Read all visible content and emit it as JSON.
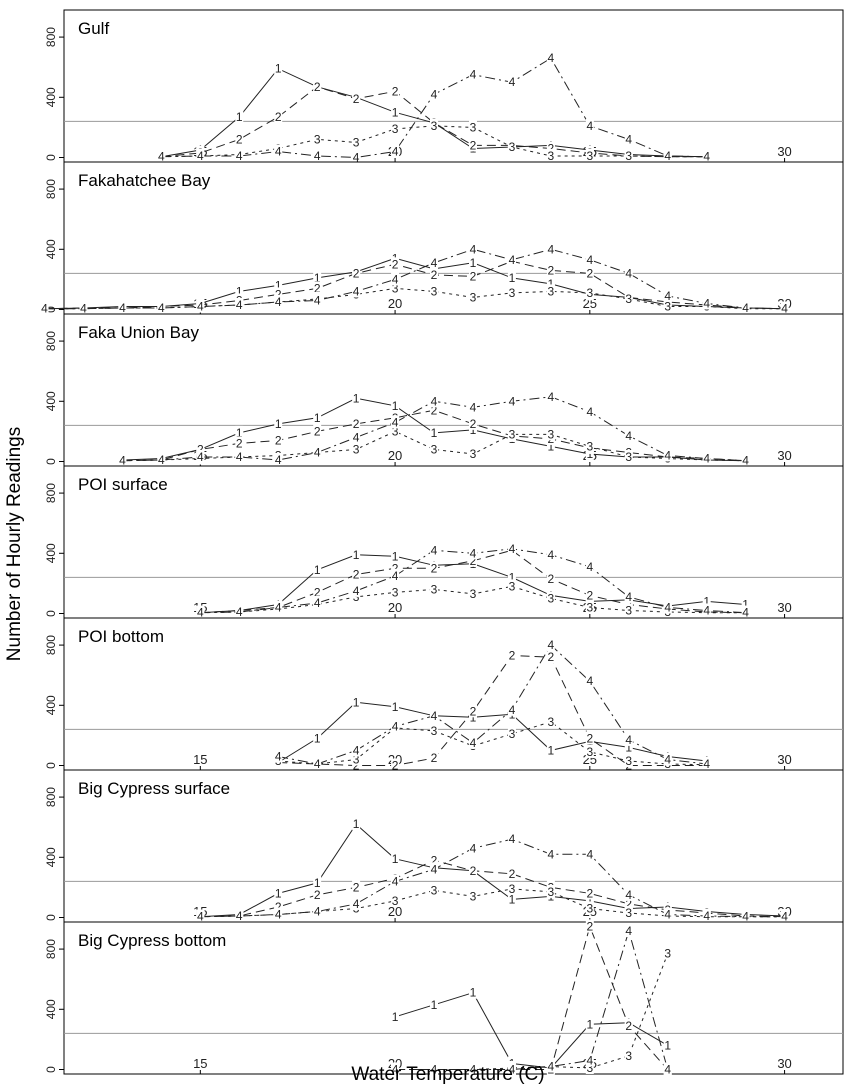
{
  "chart_data": {
    "type": "line",
    "xlabel": "Water Temperature (C)",
    "ylabel": "Number of Hourly Readings",
    "xlim": [
      11.5,
      31.5
    ],
    "ylim": [
      -30,
      980
    ],
    "x_ticks": [
      15,
      20,
      25,
      30
    ],
    "y_ticks": [
      0,
      400,
      800
    ],
    "reference_line": 240,
    "series_labels": [
      "1",
      "2",
      "3",
      "4"
    ],
    "panels": [
      {
        "title": "Gulf",
        "series": [
          {
            "label": "1",
            "x": [
              14,
              15,
              16,
              17,
              18,
              19,
              20,
              21,
              22,
              23,
              24,
              25,
              26,
              27,
              28
            ],
            "y": [
              5,
              50,
              270,
              590,
              470,
              400,
              300,
              230,
              60,
              70,
              80,
              50,
              20,
              10,
              5
            ]
          },
          {
            "label": "2",
            "x": [
              14,
              15,
              16,
              17,
              18,
              19,
              20,
              21,
              22,
              23,
              24,
              25,
              26,
              27,
              28
            ],
            "y": [
              5,
              30,
              120,
              270,
              470,
              390,
              440,
              230,
              80,
              80,
              60,
              30,
              10,
              5,
              5
            ]
          },
          {
            "label": "3",
            "x": [
              14,
              15,
              16,
              17,
              18,
              19,
              20,
              21,
              22,
              23,
              24,
              25,
              26,
              27,
              28
            ],
            "y": [
              5,
              10,
              20,
              60,
              120,
              100,
              190,
              210,
              200,
              70,
              10,
              10,
              10,
              5,
              5
            ]
          },
          {
            "label": "4",
            "x": [
              14,
              15,
              16,
              17,
              18,
              19,
              20,
              21,
              22,
              23,
              24,
              25,
              26,
              27,
              28
            ],
            "y": [
              5,
              10,
              10,
              40,
              10,
              0,
              40,
              420,
              550,
              500,
              660,
              210,
              120,
              10,
              5
            ]
          }
        ]
      },
      {
        "title": "Fakahatchee Bay",
        "series": [
          {
            "label": "1",
            "x": [
              11,
              12,
              13,
              14,
              15,
              16,
              17,
              18,
              19,
              20,
              21,
              22,
              23,
              24,
              25,
              26,
              27,
              28,
              29,
              30
            ],
            "y": [
              5,
              10,
              20,
              20,
              40,
              120,
              160,
              210,
              250,
              340,
              270,
              310,
              210,
              170,
              100,
              80,
              30,
              20,
              10,
              5
            ]
          },
          {
            "label": "2",
            "x": [
              11,
              12,
              13,
              14,
              15,
              16,
              17,
              18,
              19,
              20,
              21,
              22,
              23,
              24,
              25,
              26,
              27,
              28,
              29,
              30
            ],
            "y": [
              5,
              10,
              10,
              20,
              30,
              60,
              100,
              140,
              240,
              300,
              230,
              220,
              320,
              260,
              240,
              80,
              50,
              30,
              10,
              5
            ]
          },
          {
            "label": "3",
            "x": [
              11,
              12,
              13,
              14,
              15,
              16,
              17,
              18,
              19,
              20,
              21,
              22,
              23,
              24,
              25,
              26,
              27,
              28,
              29,
              30
            ],
            "y": [
              5,
              5,
              10,
              10,
              20,
              30,
              50,
              70,
              100,
              140,
              120,
              80,
              110,
              120,
              110,
              70,
              20,
              20,
              5,
              5
            ]
          },
          {
            "label": "4",
            "x": [
              11,
              12,
              13,
              14,
              15,
              16,
              17,
              18,
              19,
              20,
              21,
              22,
              23,
              24,
              25,
              26,
              27,
              28,
              29,
              30
            ],
            "y": [
              5,
              5,
              10,
              10,
              20,
              30,
              50,
              60,
              120,
              200,
              310,
              400,
              330,
              400,
              330,
              240,
              90,
              40,
              10,
              5
            ]
          }
        ]
      },
      {
        "title": "Faka Union Bay",
        "series": [
          {
            "label": "1",
            "x": [
              13,
              14,
              15,
              16,
              17,
              18,
              19,
              20,
              21,
              22,
              23,
              24,
              25,
              26,
              27,
              28,
              29
            ],
            "y": [
              10,
              20,
              80,
              190,
              250,
              290,
              420,
              370,
              190,
              210,
              150,
              100,
              50,
              30,
              30,
              10,
              5
            ]
          },
          {
            "label": "2",
            "x": [
              13,
              14,
              15,
              16,
              17,
              18,
              19,
              20,
              21,
              22,
              23,
              24,
              25,
              26,
              27,
              28,
              29
            ],
            "y": [
              5,
              10,
              80,
              120,
              140,
              200,
              250,
              290,
              340,
              250,
              170,
              150,
              90,
              60,
              30,
              20,
              5
            ]
          },
          {
            "label": "3",
            "x": [
              13,
              14,
              15,
              16,
              17,
              18,
              19,
              20,
              21,
              22,
              23,
              24,
              25,
              26,
              27,
              28,
              29
            ],
            "y": [
              5,
              10,
              20,
              30,
              40,
              60,
              80,
              200,
              80,
              50,
              180,
              180,
              100,
              30,
              20,
              10,
              5
            ]
          },
          {
            "label": "4",
            "x": [
              13,
              14,
              15,
              16,
              17,
              18,
              19,
              20,
              21,
              22,
              23,
              24,
              25,
              26,
              27,
              28,
              29
            ],
            "y": [
              5,
              10,
              30,
              30,
              10,
              60,
              160,
              260,
              400,
              360,
              400,
              430,
              330,
              170,
              40,
              20,
              5
            ]
          }
        ]
      },
      {
        "title": "POI surface",
        "series": [
          {
            "label": "1",
            "x": [
              15,
              16,
              17,
              18,
              19,
              20,
              21,
              22,
              23,
              24,
              25,
              26,
              27,
              28,
              29
            ],
            "y": [
              5,
              20,
              60,
              290,
              390,
              380,
              320,
              330,
              240,
              120,
              80,
              90,
              50,
              80,
              60
            ]
          },
          {
            "label": "2",
            "x": [
              15,
              16,
              17,
              18,
              19,
              20,
              21,
              22,
              23,
              24,
              25,
              26,
              27,
              28,
              29
            ],
            "y": [
              5,
              20,
              40,
              140,
              260,
              300,
              300,
              350,
              420,
              230,
              120,
              60,
              30,
              10,
              5
            ]
          },
          {
            "label": "3",
            "x": [
              15,
              16,
              17,
              18,
              19,
              20,
              21,
              22,
              23,
              24,
              25,
              26,
              27,
              28,
              29
            ],
            "y": [
              5,
              10,
              30,
              60,
              110,
              140,
              160,
              130,
              180,
              100,
              40,
              20,
              10,
              5,
              5
            ]
          },
          {
            "label": "4",
            "x": [
              15,
              16,
              17,
              18,
              19,
              20,
              21,
              22,
              23,
              24,
              25,
              26,
              27,
              28,
              29
            ],
            "y": [
              5,
              10,
              40,
              70,
              150,
              250,
              420,
              400,
              430,
              390,
              310,
              110,
              40,
              20,
              5
            ]
          }
        ]
      },
      {
        "title": "POI bottom",
        "series": [
          {
            "label": "1",
            "x": [
              17,
              18,
              19,
              20,
              21,
              22,
              23,
              24,
              25,
              26,
              27,
              28
            ],
            "y": [
              20,
              180,
              420,
              390,
              330,
              320,
              340,
              100,
              160,
              120,
              60,
              30
            ]
          },
          {
            "label": "2",
            "x": [
              17,
              18,
              19,
              20,
              21,
              22,
              23,
              24,
              25,
              26,
              27,
              28
            ],
            "y": [
              20,
              10,
              0,
              0,
              50,
              360,
              730,
              720,
              180,
              0,
              0,
              0
            ]
          },
          {
            "label": "3",
            "x": [
              17,
              18,
              19,
              20,
              21,
              22,
              23,
              24,
              25,
              26,
              27,
              28
            ],
            "y": [
              30,
              10,
              40,
              250,
              230,
              130,
              210,
              290,
              90,
              30,
              10,
              5
            ]
          },
          {
            "label": "4",
            "x": [
              17,
              18,
              19,
              20,
              21,
              22,
              23,
              24,
              25,
              26,
              27,
              28
            ],
            "y": [
              60,
              10,
              100,
              260,
              330,
              150,
              370,
              800,
              560,
              170,
              40,
              10
            ]
          }
        ]
      },
      {
        "title": "Big Cypress surface",
        "series": [
          {
            "label": "1",
            "x": [
              15,
              16,
              17,
              18,
              19,
              20,
              21,
              22,
              23,
              24,
              25,
              26,
              27,
              28,
              29,
              30
            ],
            "y": [
              5,
              20,
              160,
              230,
              620,
              390,
              330,
              310,
              120,
              140,
              110,
              60,
              70,
              40,
              20,
              10
            ]
          },
          {
            "label": "2",
            "x": [
              15,
              16,
              17,
              18,
              19,
              20,
              21,
              22,
              23,
              24,
              25,
              26,
              27,
              28,
              29,
              30
            ],
            "y": [
              5,
              10,
              70,
              150,
              200,
              260,
              380,
              310,
              290,
              200,
              160,
              90,
              50,
              30,
              10,
              5
            ]
          },
          {
            "label": "3",
            "x": [
              15,
              16,
              17,
              18,
              19,
              20,
              21,
              22,
              23,
              24,
              25,
              26,
              27,
              28,
              29,
              30
            ],
            "y": [
              5,
              10,
              20,
              40,
              60,
              110,
              180,
              140,
              190,
              170,
              60,
              30,
              10,
              5,
              5,
              5
            ]
          },
          {
            "label": "4",
            "x": [
              15,
              16,
              17,
              18,
              19,
              20,
              21,
              22,
              23,
              24,
              25,
              26,
              27,
              28,
              29,
              30
            ],
            "y": [
              5,
              10,
              20,
              40,
              90,
              240,
              320,
              460,
              520,
              420,
              420,
              150,
              20,
              10,
              5,
              5
            ]
          }
        ]
      },
      {
        "title": "Big Cypress bottom",
        "series": [
          {
            "label": "1",
            "x": [
              20,
              21,
              22,
              23,
              24,
              25,
              26,
              27
            ],
            "y": [
              350,
              430,
              510,
              40,
              10,
              300,
              310,
              160
            ]
          },
          {
            "label": "2",
            "x": [
              20,
              21,
              22,
              23,
              24,
              25,
              26,
              27
            ],
            "y": [
              0,
              0,
              0,
              0,
              0,
              950,
              290,
              0
            ]
          },
          {
            "label": "3",
            "x": [
              20,
              21,
              22,
              23,
              24,
              25,
              26,
              27
            ],
            "y": [
              0,
              0,
              0,
              10,
              20,
              10,
              90,
              770
            ]
          },
          {
            "label": "4",
            "x": [
              20,
              21,
              22,
              23,
              24,
              25,
              26,
              27
            ],
            "y": [
              0,
              0,
              0,
              0,
              20,
              60,
              920,
              0
            ]
          }
        ]
      }
    ]
  }
}
